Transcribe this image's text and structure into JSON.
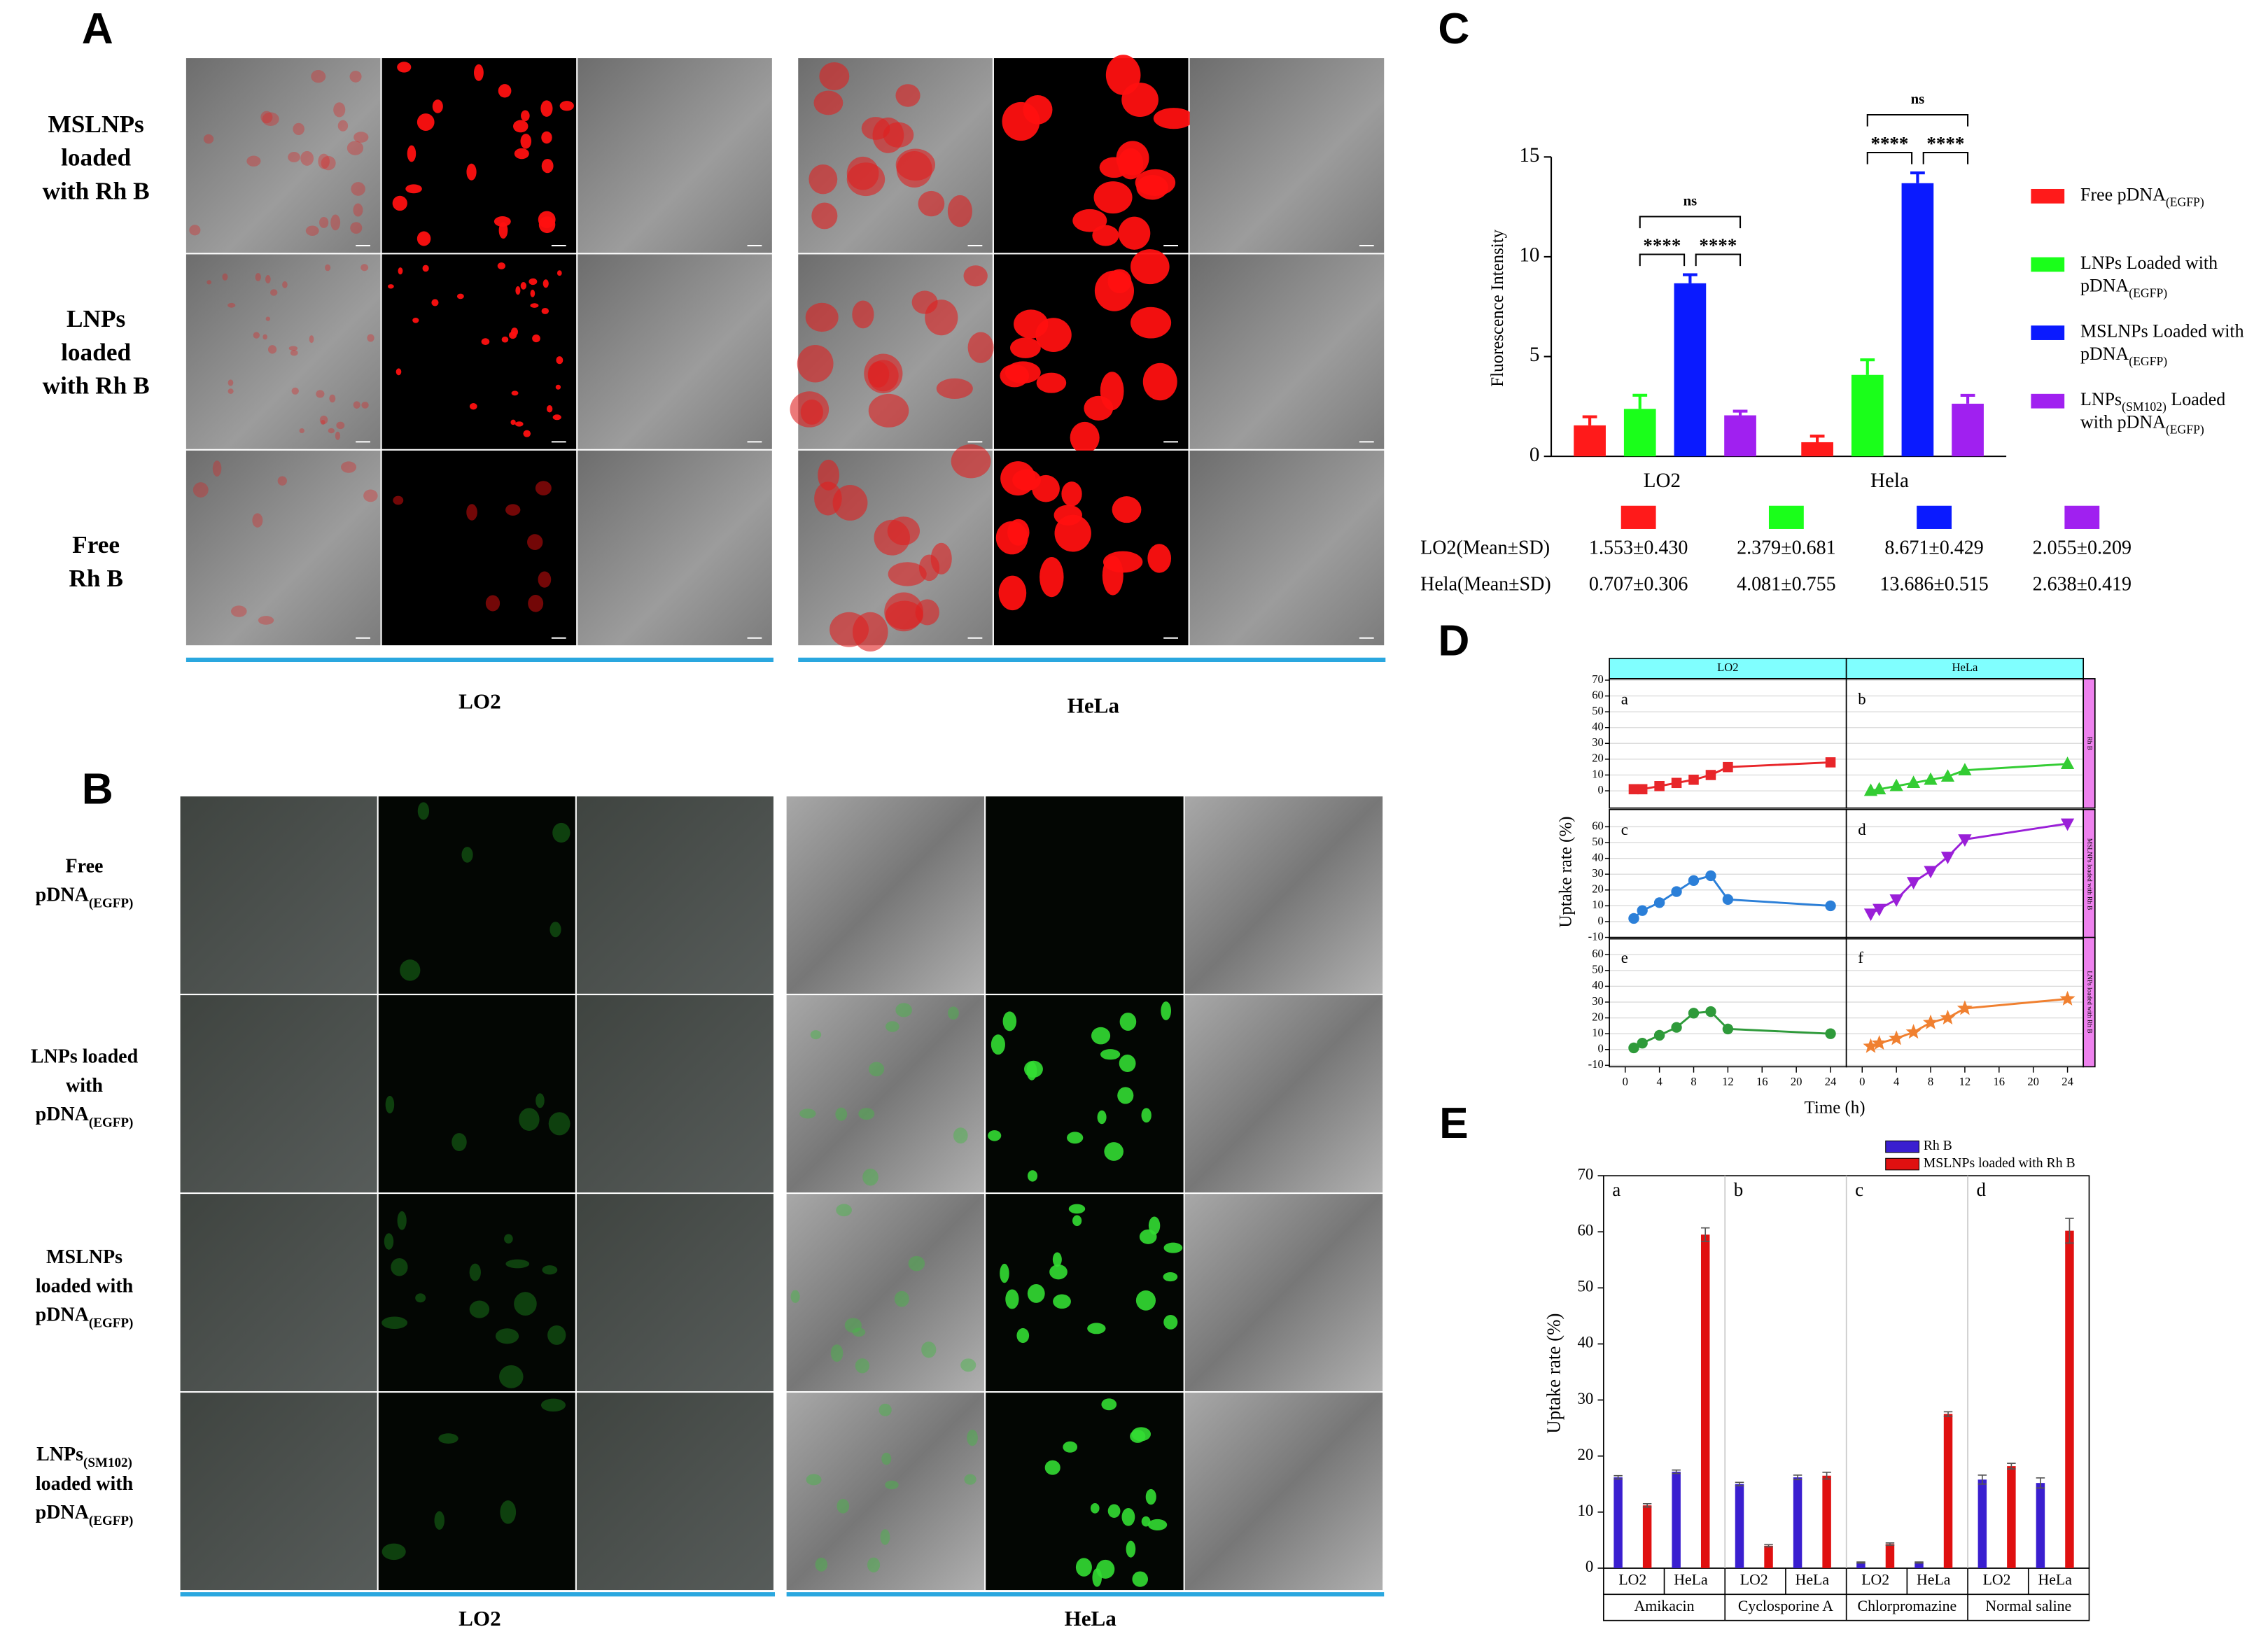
{
  "panel_a": {
    "label": "A",
    "row_labels": [
      [
        "MSLNPs",
        "loaded",
        "with Rh B"
      ],
      [
        "LNPs",
        "loaded",
        "with Rh B"
      ],
      [
        "Free",
        "Rh B"
      ]
    ],
    "column_labels": [
      "LO2",
      "HeLa"
    ]
  },
  "panel_b": {
    "label": "B",
    "row_labels": [
      [
        "Free",
        "pDNA(EGFP)"
      ],
      [
        "LNPs loaded",
        "with",
        "pDNA(EGFP)"
      ],
      [
        "MSLNPs",
        "loaded with",
        "pDNA(EGFP)"
      ],
      [
        "LNPs(SM102)",
        "loaded with",
        "pDNA(EGFP)"
      ]
    ],
    "column_labels": [
      "LO2",
      "HeLa"
    ]
  },
  "chart_data": [
    {
      "type": "bar",
      "panel_label": "C",
      "y_label": "Fluorescence Intensity",
      "categories": [
        "LO2",
        "Hela"
      ],
      "ylim": [
        0,
        15
      ],
      "yticks": [
        0,
        5,
        10,
        15
      ],
      "series": [
        {
          "name": "Free pDNA(EGFP)",
          "color": "#ff1a1a",
          "values": [
            1.553,
            0.707
          ],
          "errors": [
            0.43,
            0.306
          ],
          "value_labels": [
            "1.553±0.430",
            "0.707±0.306"
          ]
        },
        {
          "name": "LNPs Loaded with pDNA(EGFP)",
          "color": "#1aff1a",
          "values": [
            2.379,
            4.081
          ],
          "errors": [
            0.681,
            0.755
          ],
          "value_labels": [
            "2.379±0.681",
            "4.081±0.755"
          ]
        },
        {
          "name": "MSLNPs Loaded with pDNA(EGFP)",
          "color": "#0a1aff",
          "values": [
            8.671,
            13.686
          ],
          "errors": [
            0.429,
            0.515
          ],
          "value_labels": [
            "8.671±0.429",
            "13.686±0.515"
          ]
        },
        {
          "name": "LNPs(SM102) Loaded with pDNA(EGFP)",
          "color": "#a020f0",
          "values": [
            2.055,
            2.638
          ],
          "errors": [
            0.209,
            0.419
          ],
          "value_labels": [
            "2.055±0.209",
            "2.638±0.419"
          ]
        }
      ],
      "significance": [
        [
          "****",
          "****",
          "ns"
        ],
        [
          "****",
          "****",
          "ns"
        ]
      ],
      "table_row_labels": [
        "LO2(Mean±SD)",
        "Hela(Mean±SD)"
      ]
    },
    {
      "type": "line",
      "panel_label": "D",
      "x_label": "Time (h)",
      "y_label": "Uptake rate (%)",
      "columns": [
        "LO2",
        "HeLa"
      ],
      "rows": [
        "Rh B",
        "MSLNPs loaded with Rh B",
        "LNPs loaded with Rh B"
      ],
      "x": [
        1,
        2,
        4,
        6,
        8,
        10,
        12,
        24
      ],
      "xlim": [
        -1,
        25
      ],
      "xticks": [
        0,
        4,
        8,
        12,
        16,
        20,
        24
      ],
      "ylim": [
        -10,
        70
      ],
      "yticks": [
        [
          0,
          10,
          20,
          30,
          40,
          50,
          60,
          70
        ],
        [
          -10,
          0,
          10,
          20,
          30,
          40,
          50,
          60
        ],
        [
          -10,
          0,
          10,
          20,
          30,
          40,
          50,
          60
        ]
      ],
      "grid": true,
      "series": [
        {
          "name": "a",
          "color": "#e8262a",
          "marker": "square",
          "values": [
            1,
            1,
            3,
            5,
            7,
            10,
            15,
            18
          ]
        },
        {
          "name": "b",
          "color": "#33cc33",
          "marker": "triangle-up",
          "values": [
            0,
            1,
            3,
            5,
            7,
            9,
            13,
            17
          ]
        },
        {
          "name": "c",
          "color": "#2b7fd8",
          "marker": "circle",
          "values": [
            2,
            7,
            12,
            19,
            26,
            29,
            14,
            10
          ]
        },
        {
          "name": "d",
          "color": "#9a1fd8",
          "marker": "triangle-down",
          "values": [
            5,
            8,
            14,
            25,
            32,
            41,
            52,
            62
          ]
        },
        {
          "name": "e",
          "color": "#2e9a3a",
          "marker": "circle",
          "values": [
            1,
            4,
            9,
            14,
            23,
            24,
            13,
            10
          ]
        },
        {
          "name": "f",
          "color": "#f08030",
          "marker": "star",
          "values": [
            2,
            4,
            7,
            11,
            17,
            20,
            26,
            32
          ]
        }
      ]
    },
    {
      "type": "bar",
      "panel_label": "E",
      "y_label": "Uptake rate (%)",
      "groups": [
        "Amikacin",
        "Cyclosporine A",
        "Chlorpromazine",
        "Normal saline"
      ],
      "group_labels": [
        "a",
        "b",
        "c",
        "d"
      ],
      "categories": [
        "LO2",
        "HeLa",
        "LO2",
        "HeLa",
        "LO2",
        "HeLa",
        "LO2",
        "HeLa"
      ],
      "ylim": [
        0,
        70
      ],
      "yticks": [
        0,
        10,
        20,
        30,
        40,
        50,
        60,
        70
      ],
      "series": [
        {
          "name": "Rh B",
          "color": "#3a1fd0",
          "values": [
            16.2,
            17.2,
            15.0,
            16.2,
            1.0,
            1.0,
            15.8,
            15.2
          ],
          "errors": [
            0.3,
            0.3,
            0.3,
            0.4,
            0.1,
            0.1,
            0.8,
            0.9
          ]
        },
        {
          "name": "MSLNPs loaded with Rh B",
          "color": "#e01010",
          "values": [
            11.2,
            59.5,
            4.0,
            16.5,
            4.3,
            27.5,
            18.2,
            60.2
          ],
          "errors": [
            0.3,
            1.2,
            0.2,
            0.6,
            0.2,
            0.4,
            0.5,
            2.2
          ]
        }
      ]
    }
  ]
}
